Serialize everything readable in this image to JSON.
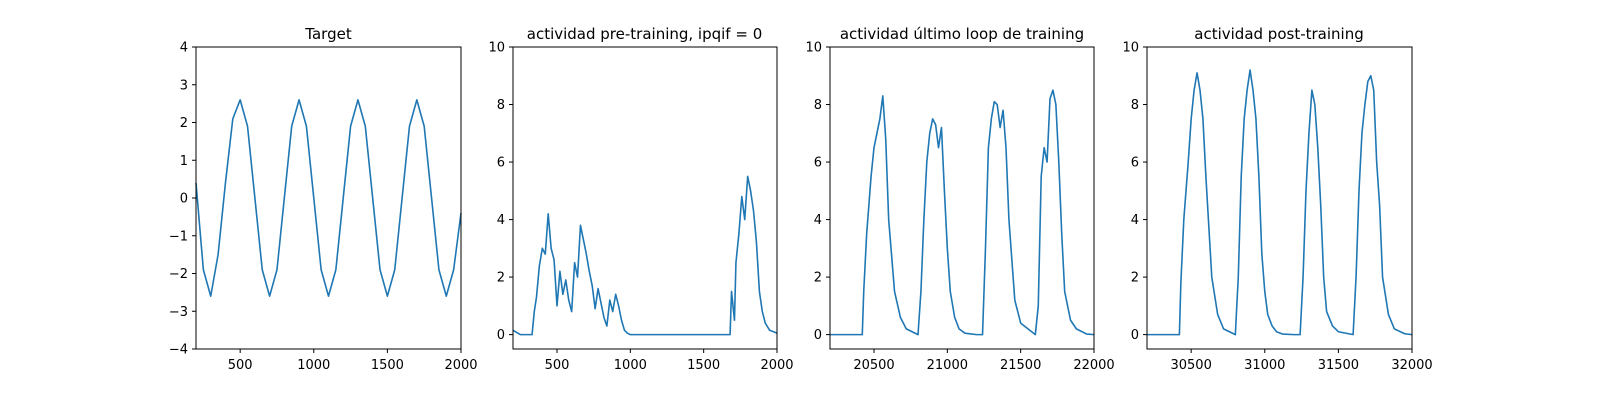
{
  "figure": {
    "background": "#ffffff",
    "line_color": "#1f77b4"
  },
  "chart_data": [
    {
      "type": "line",
      "title": "Target",
      "xlim": [
        200,
        2000
      ],
      "ylim": [
        -4,
        4
      ],
      "xticks": [
        500,
        1000,
        1500,
        2000
      ],
      "yticks": [
        -4,
        -3,
        -2,
        -1,
        0,
        1,
        2,
        3,
        4
      ],
      "xtick_labels": [
        "500",
        "1000",
        "1500",
        "2000"
      ],
      "ytick_labels": [
        "−4",
        "−3",
        "−2",
        "−1",
        "0",
        "1",
        "2",
        "3",
        "4"
      ],
      "series": [
        {
          "x": [
            200,
            250,
            300,
            350,
            400,
            450,
            500,
            550,
            600,
            650,
            700,
            750,
            800,
            850,
            900,
            950,
            1000,
            1050,
            1100,
            1150,
            1200,
            1250,
            1300,
            1350,
            1400,
            1450,
            1500,
            1550,
            1600,
            1650,
            1700,
            1750,
            1800,
            1850,
            1900,
            1950,
            2000
          ],
          "y": [
            0.4,
            -1.9,
            -2.6,
            -1.5,
            0.4,
            2.1,
            2.6,
            1.9,
            0.0,
            -1.9,
            -2.6,
            -1.9,
            0.0,
            1.9,
            2.6,
            1.9,
            0.0,
            -1.9,
            -2.6,
            -1.9,
            0.0,
            1.9,
            2.6,
            1.9,
            0.0,
            -1.9,
            -2.6,
            -1.9,
            0.0,
            1.9,
            2.6,
            1.9,
            0.0,
            -1.9,
            -2.6,
            -1.9,
            -0.4
          ]
        }
      ]
    },
    {
      "type": "line",
      "title": "actividad pre-training, ipqif = 0",
      "xlim": [
        200,
        2000
      ],
      "ylim": [
        -0.5,
        10
      ],
      "xticks": [
        500,
        1000,
        1500,
        2000
      ],
      "yticks": [
        0,
        2,
        4,
        6,
        8,
        10
      ],
      "xtick_labels": [
        "500",
        "1000",
        "1500",
        "2000"
      ],
      "ytick_labels": [
        "0",
        "2",
        "4",
        "6",
        "8",
        "10"
      ],
      "series": [
        {
          "x": [
            200,
            250,
            300,
            330,
            345,
            360,
            380,
            400,
            420,
            440,
            460,
            480,
            500,
            520,
            540,
            560,
            580,
            600,
            620,
            640,
            660,
            680,
            700,
            720,
            740,
            760,
            780,
            800,
            820,
            840,
            860,
            880,
            900,
            920,
            940,
            960,
            980,
            1000,
            1050,
            1100,
            1200,
            1300,
            1400,
            1500,
            1600,
            1680,
            1690,
            1700,
            1710,
            1720,
            1740,
            1760,
            1780,
            1800,
            1820,
            1840,
            1860,
            1880,
            1900,
            1920,
            1950,
            2000
          ],
          "y": [
            0.15,
            0.0,
            0.0,
            0.0,
            0.8,
            1.3,
            2.4,
            3.0,
            2.8,
            4.2,
            3.0,
            2.6,
            1.0,
            2.2,
            1.4,
            1.9,
            1.2,
            0.8,
            2.5,
            2.0,
            3.8,
            3.3,
            2.8,
            2.2,
            1.7,
            0.9,
            1.6,
            1.1,
            0.6,
            0.3,
            1.2,
            0.8,
            1.4,
            1.0,
            0.5,
            0.15,
            0.05,
            0.0,
            0.0,
            0.0,
            0.0,
            0.0,
            0.0,
            0.0,
            0.0,
            0.0,
            1.5,
            1.0,
            0.5,
            2.5,
            3.5,
            4.8,
            4.0,
            5.5,
            5.0,
            4.3,
            3.2,
            1.5,
            0.8,
            0.4,
            0.15,
            0.05
          ]
        }
      ]
    },
    {
      "type": "line",
      "title": "actividad último loop de training",
      "xlim": [
        20200,
        22000
      ],
      "ylim": [
        -0.5,
        10
      ],
      "xticks": [
        20500,
        21000,
        21500,
        22000
      ],
      "yticks": [
        0,
        2,
        4,
        6,
        8,
        10
      ],
      "xtick_labels": [
        "20500",
        "21000",
        "21500",
        "22000"
      ],
      "ytick_labels": [
        "0",
        "2",
        "4",
        "6",
        "8",
        "10"
      ],
      "series": [
        {
          "x": [
            20200,
            20300,
            20420,
            20430,
            20450,
            20480,
            20500,
            20520,
            20540,
            20560,
            20580,
            20600,
            20640,
            20680,
            20720,
            20800,
            20820,
            20840,
            20860,
            20880,
            20900,
            20920,
            20940,
            20960,
            20980,
            21000,
            21020,
            21050,
            21080,
            21120,
            21200,
            21240,
            21260,
            21280,
            21300,
            21320,
            21340,
            21360,
            21380,
            21400,
            21420,
            21460,
            21500,
            21600,
            21620,
            21640,
            21660,
            21680,
            21700,
            21720,
            21740,
            21760,
            21780,
            21800,
            21840,
            21880,
            21950,
            22000
          ],
          "y": [
            0.0,
            0.0,
            0.0,
            1.5,
            3.5,
            5.5,
            6.5,
            7.0,
            7.5,
            8.3,
            6.8,
            4.0,
            1.5,
            0.6,
            0.2,
            0.0,
            1.5,
            4.0,
            6.0,
            7.0,
            7.5,
            7.3,
            6.5,
            7.2,
            5.0,
            3.0,
            1.5,
            0.6,
            0.2,
            0.05,
            0.0,
            0.0,
            3.0,
            6.5,
            7.5,
            8.1,
            8.0,
            7.2,
            7.8,
            6.5,
            4.0,
            1.2,
            0.4,
            0.0,
            1.0,
            5.5,
            6.5,
            6.0,
            8.2,
            8.5,
            8.0,
            6.0,
            3.5,
            1.5,
            0.5,
            0.2,
            0.02,
            0.0
          ]
        }
      ]
    },
    {
      "type": "line",
      "title": "actividad post-training",
      "xlim": [
        30200,
        32000
      ],
      "ylim": [
        -0.5,
        10
      ],
      "xticks": [
        30500,
        31000,
        31500,
        32000
      ],
      "yticks": [
        0,
        2,
        4,
        6,
        8,
        10
      ],
      "xtick_labels": [
        "30500",
        "31000",
        "31500",
        "32000"
      ],
      "ytick_labels": [
        "0",
        "2",
        "4",
        "6",
        "8",
        "10"
      ],
      "series": [
        {
          "x": [
            30200,
            30300,
            30420,
            30430,
            30450,
            30480,
            30500,
            30520,
            30540,
            30560,
            30580,
            30600,
            30640,
            30680,
            30720,
            30800,
            30820,
            30840,
            30860,
            30880,
            30900,
            30920,
            30940,
            30960,
            30980,
            31000,
            31020,
            31050,
            31080,
            31120,
            31200,
            31240,
            31260,
            31280,
            31300,
            31320,
            31340,
            31360,
            31380,
            31400,
            31420,
            31460,
            31500,
            31600,
            31620,
            31640,
            31660,
            31680,
            31700,
            31720,
            31740,
            31760,
            31780,
            31800,
            31840,
            31880,
            31950,
            32000
          ],
          "y": [
            0.0,
            0.0,
            0.0,
            1.8,
            4.0,
            6.0,
            7.5,
            8.5,
            9.1,
            8.5,
            7.5,
            5.5,
            2.0,
            0.7,
            0.2,
            0.0,
            2.0,
            5.5,
            7.5,
            8.5,
            9.2,
            8.5,
            7.5,
            5.5,
            2.8,
            1.5,
            0.7,
            0.3,
            0.1,
            0.02,
            0.0,
            0.0,
            2.0,
            5.0,
            7.0,
            8.5,
            8.0,
            6.5,
            4.5,
            2.0,
            0.8,
            0.3,
            0.1,
            0.0,
            2.0,
            5.0,
            7.0,
            8.0,
            8.8,
            9.0,
            8.5,
            6.0,
            4.5,
            2.0,
            0.7,
            0.2,
            0.03,
            0.0
          ]
        }
      ]
    }
  ]
}
